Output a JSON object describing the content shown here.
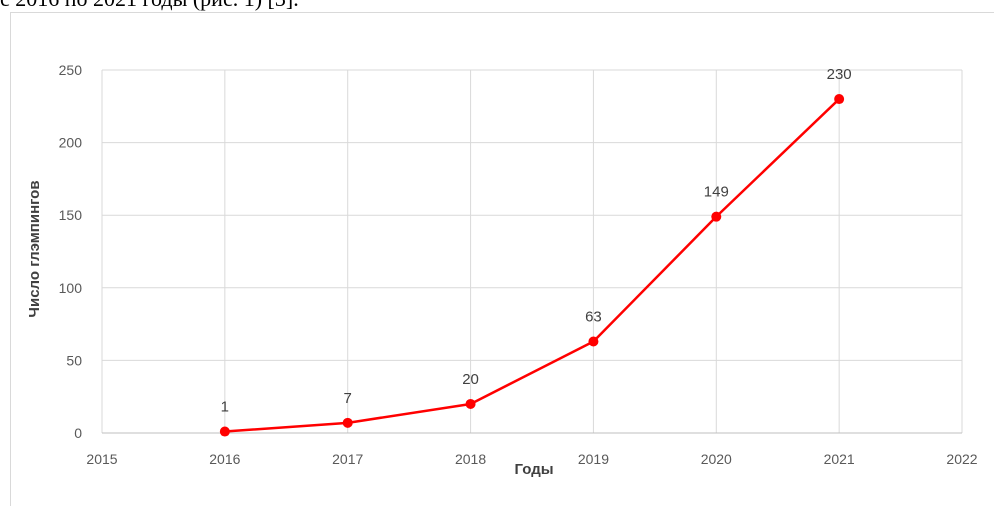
{
  "page": {
    "top_text": "с 2016 по 2021 годы (рис. 1) [3]."
  },
  "chart_data": {
    "type": "line",
    "title": "",
    "xlabel": "Годы",
    "ylabel": "Число глэмпингов",
    "xlim": [
      2015,
      2022
    ],
    "ylim": [
      0,
      250
    ],
    "x_ticks": [
      2015,
      2016,
      2017,
      2018,
      2019,
      2020,
      2021,
      2022
    ],
    "y_ticks": [
      0,
      50,
      100,
      150,
      200,
      250
    ],
    "grid": true,
    "legend": "none",
    "series": [
      {
        "x": [
          2016,
          2017,
          2018,
          2019,
          2020,
          2021
        ],
        "values": [
          1,
          7,
          20,
          63,
          149,
          230
        ],
        "data_labels": [
          "1",
          "7",
          "20",
          "63",
          "149",
          "230"
        ],
        "color": "#ff0000"
      }
    ]
  }
}
